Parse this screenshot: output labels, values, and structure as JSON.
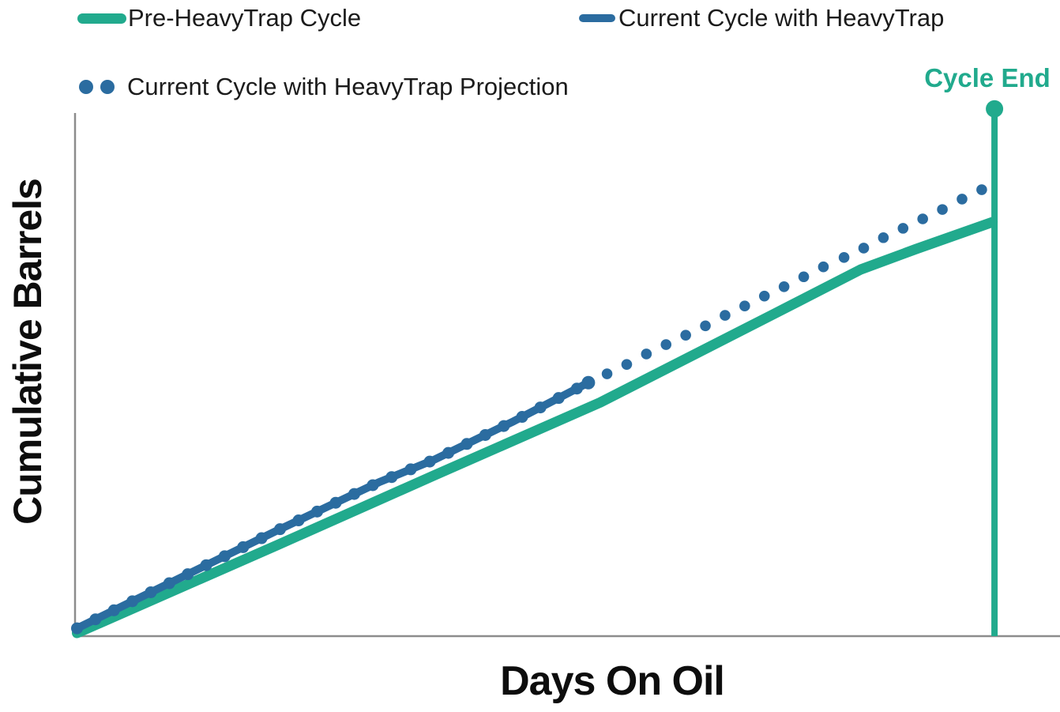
{
  "colors": {
    "teal": "#21AA8D",
    "blue": "#2B6CA0",
    "axis_gray": "#8C8C8C",
    "text_dark": "#1B1B1B",
    "label_black": "#0D0D0D"
  },
  "legend": {
    "items": [
      {
        "label": "Pre-HeavyTrap Cycle",
        "swatch": "line",
        "color": "#21AA8D"
      },
      {
        "label": "Current Cycle with HeavyTrap",
        "swatch": "line",
        "color": "#2B6CA0"
      },
      {
        "label": "Current Cycle with HeavyTrap Projection",
        "swatch": "dots",
        "color": "#2B6CA0"
      }
    ]
  },
  "chart_data": {
    "type": "line",
    "title": "",
    "xlabel": "Days On Oil",
    "ylabel": "Cumulative Barrels",
    "grid": false,
    "legend_position": "top",
    "axes_color": "#8C8C8C",
    "x_ticks": [],
    "y_ticks": [],
    "note": "Axes are unlabeled; point coordinates are percent of plot range (x: percent of days axis, y: percent of barrels axis).",
    "series": [
      {
        "name": "Pre-HeavyTrap Cycle",
        "style": "solid",
        "color": "#21AA8D",
        "width": 13,
        "points": [
          [
            0.2,
            0.6
          ],
          [
            20.5,
            17.4
          ],
          [
            36.5,
            30.8
          ],
          [
            53.4,
            44.8
          ],
          [
            71.1,
            61.8
          ],
          [
            79.9,
            70.3
          ],
          [
            85.5,
            74.2
          ],
          [
            93.3,
            79.4
          ]
        ]
      },
      {
        "name": "Current Cycle with HeavyTrap",
        "style": "beaded",
        "color": "#2B6CA0",
        "width": 10,
        "bead_radius": 7.5,
        "bead_spacing": 26,
        "points": [
          [
            0.2,
            1.5
          ],
          [
            20.5,
            20.2
          ],
          [
            30.9,
            29.5
          ],
          [
            36.5,
            33.8
          ],
          [
            44.6,
            41.2
          ],
          [
            52.2,
            48.6
          ]
        ]
      },
      {
        "name": "Current Cycle with HeavyTrap Projection",
        "style": "dotted",
        "color": "#2B6CA0",
        "dot_radius": 6.8,
        "points": [
          [
            54.1,
            50.3
          ],
          [
            56.1,
            52.1
          ],
          [
            58.1,
            54.1
          ],
          [
            60.1,
            55.9
          ],
          [
            62.1,
            57.7
          ],
          [
            64.1,
            59.5
          ],
          [
            66.1,
            61.5
          ],
          [
            68.1,
            63.3
          ],
          [
            70.1,
            65.2
          ],
          [
            72.1,
            67.0
          ],
          [
            74.1,
            68.9
          ],
          [
            76.1,
            70.8
          ],
          [
            78.2,
            72.6
          ],
          [
            80.2,
            74.4
          ],
          [
            82.2,
            76.4
          ],
          [
            84.2,
            78.2
          ],
          [
            86.2,
            80.0
          ],
          [
            88.2,
            81.8
          ],
          [
            90.2,
            83.8
          ],
          [
            92.2,
            85.6
          ]
        ]
      }
    ],
    "annotation": {
      "label": "Cycle End",
      "x_pct": 93.5,
      "top_y_pct": 101.1,
      "color": "#21AA8D",
      "line_width": 8,
      "dot_radius": 11
    }
  }
}
